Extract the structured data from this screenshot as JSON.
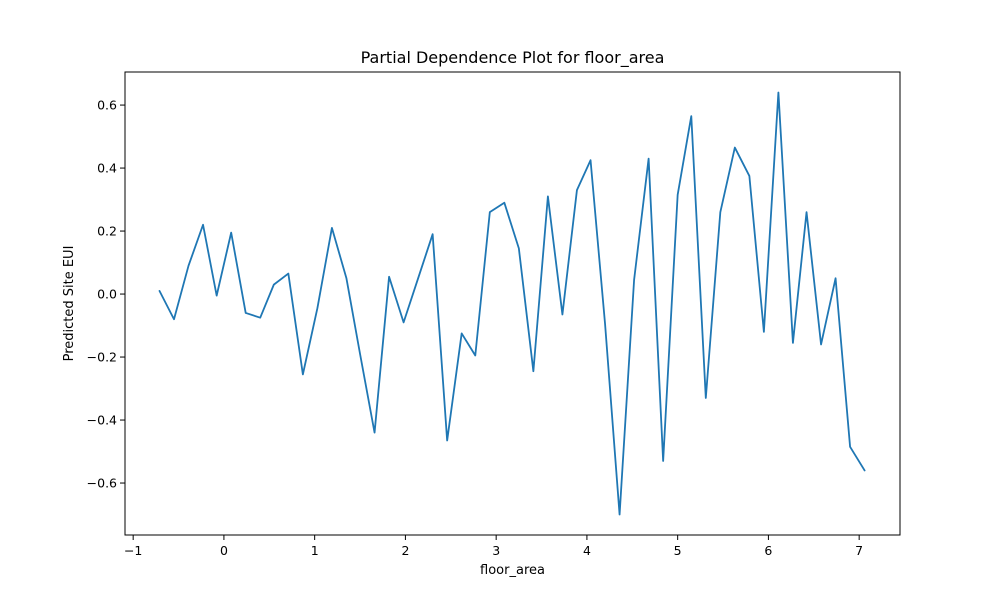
{
  "chart_data": {
    "type": "line",
    "title": "Partial Dependence Plot for floor_area",
    "xlabel": "floor_area",
    "ylabel": "Predicted Site EUI",
    "xlim": [
      -1.09,
      7.45
    ],
    "ylim": [
      -0.765,
      0.705
    ],
    "xticks": [
      -1,
      0,
      1,
      2,
      3,
      4,
      5,
      6,
      7
    ],
    "xtick_labels": [
      "−1",
      "0",
      "1",
      "2",
      "3",
      "4",
      "5",
      "6",
      "7"
    ],
    "yticks": [
      -0.6,
      -0.4,
      -0.2,
      0.0,
      0.2,
      0.4,
      0.6
    ],
    "ytick_labels": [
      "−0.6",
      "−0.4",
      "−0.2",
      "0.0",
      "0.2",
      "0.4",
      "0.6"
    ],
    "grid": false,
    "series": [
      {
        "color": "#1f77b4",
        "x": [
          -0.71,
          -0.55,
          -0.39,
          -0.23,
          -0.08,
          0.08,
          0.24,
          0.4,
          0.55,
          0.71,
          0.87,
          1.03,
          1.19,
          1.35,
          1.5,
          1.66,
          1.82,
          1.98,
          2.14,
          2.3,
          2.46,
          2.62,
          2.77,
          2.93,
          3.09,
          3.25,
          3.41,
          3.57,
          3.73,
          3.89,
          4.04,
          4.2,
          4.36,
          4.52,
          4.68,
          4.84,
          5.0,
          5.15,
          5.31,
          5.47,
          5.63,
          5.79,
          5.95,
          6.11,
          6.27,
          6.42,
          6.58,
          6.74,
          6.9,
          7.06
        ],
        "y": [
          0.01,
          -0.08,
          0.09,
          0.22,
          -0.005,
          0.195,
          -0.06,
          -0.075,
          0.03,
          0.065,
          -0.255,
          -0.045,
          0.21,
          0.05,
          -0.19,
          -0.44,
          0.055,
          -0.09,
          0.05,
          0.19,
          -0.465,
          -0.125,
          -0.195,
          0.26,
          0.29,
          0.145,
          -0.245,
          0.31,
          -0.065,
          0.33,
          0.425,
          -0.095,
          -0.7,
          0.045,
          0.43,
          -0.53,
          0.315,
          0.565,
          -0.33,
          0.26,
          0.465,
          0.375,
          -0.12,
          0.64,
          -0.155,
          0.26,
          -0.16,
          0.05,
          -0.485,
          -0.56
        ]
      }
    ]
  }
}
